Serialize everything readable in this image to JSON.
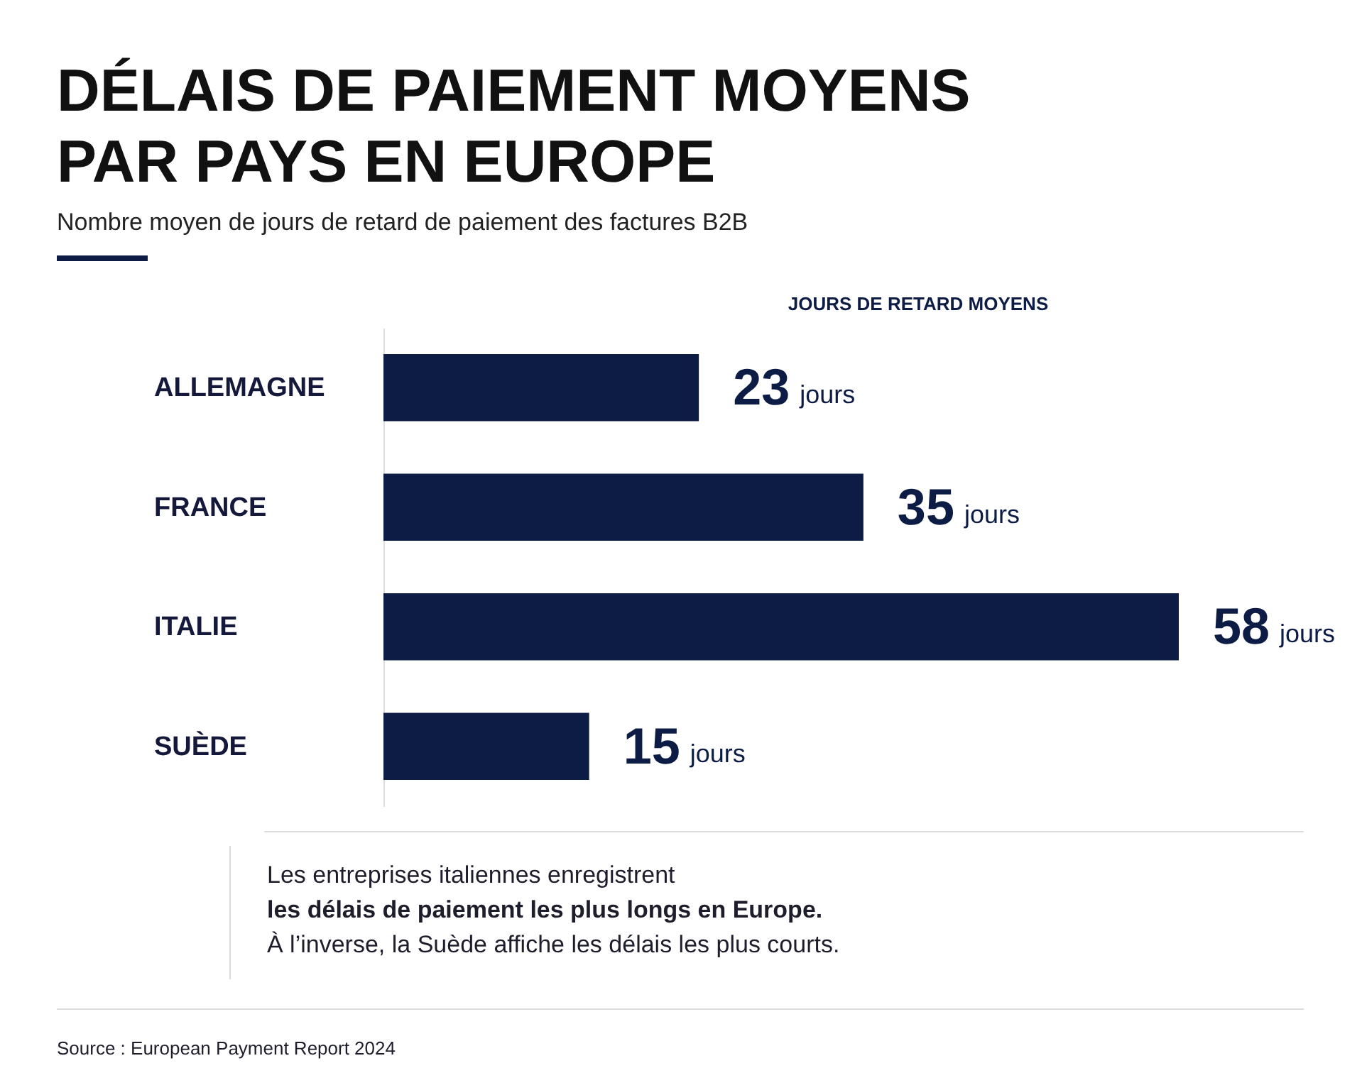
{
  "chart_data": {
    "type": "bar",
    "orientation": "horizontal",
    "title": "DÉLAIS DE PAIEMENT MOYENS PAR PAYS EN EUROPE",
    "subtitle": "Nombre moyen de jours de retard de paiement des factures B2B",
    "xlabel": "JOURS DE RETARD MOYENS",
    "categories": [
      "ALLEMAGNE",
      "FRANCE",
      "ITALIE",
      "SUÈDE"
    ],
    "values": [
      23,
      35,
      58,
      15
    ],
    "color": "#0c1c45",
    "data_labels": true,
    "tick_labels": "y",
    "annotations": [
      "jours",
      "jours",
      "jours",
      "jours",
      "Les entreprises italiennes enregistrent",
      "les délais de paiement les plus longs en Europe.",
      "À l’inverse, la Suède affiche les délais les plus courts.",
      "Source : European Payment Report 2024"
    ]
  }
}
